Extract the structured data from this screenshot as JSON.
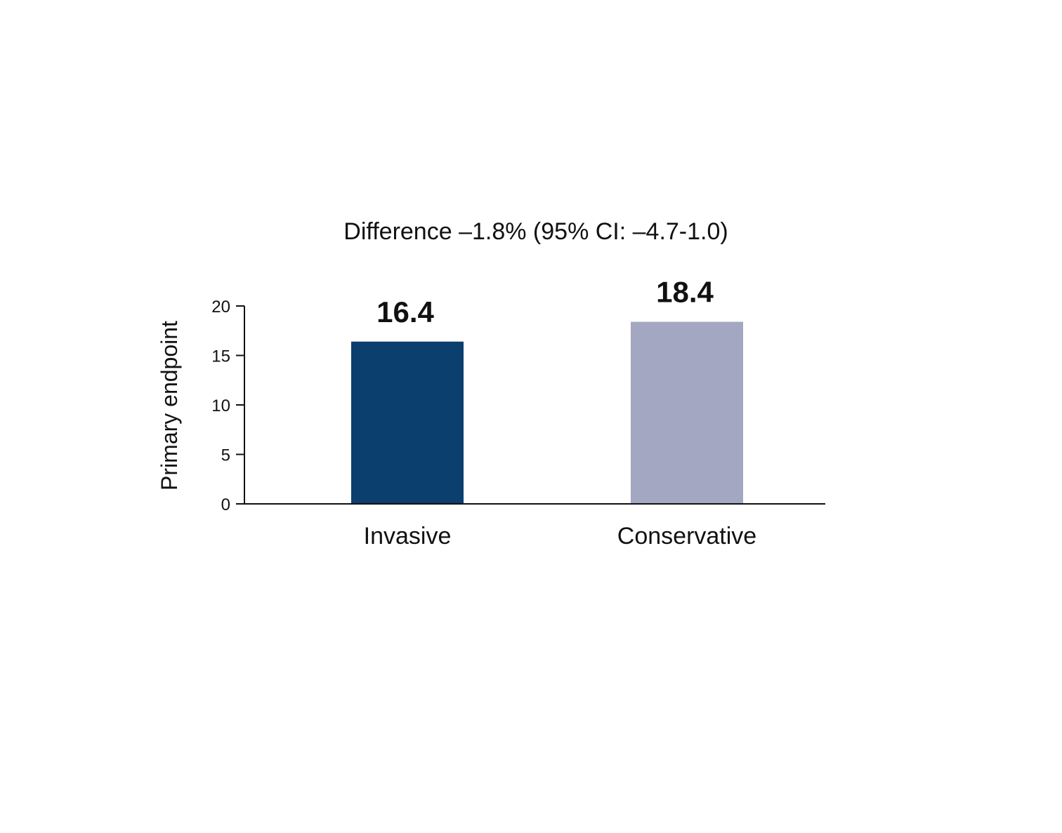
{
  "chart_data": {
    "type": "bar",
    "title": "Difference –1.8% (95% CI: –4.7-1.0)",
    "xlabel": "",
    "ylabel": "Primary endpoint",
    "categories": [
      "Invasive",
      "Conservative"
    ],
    "values": [
      16.4,
      18.4
    ],
    "value_labels": [
      "16.4",
      "18.4"
    ],
    "colors": [
      "#0a3f6e",
      "#a3a7c2"
    ],
    "ylim": [
      0,
      20
    ],
    "yticks": [
      0,
      5,
      10,
      15,
      20
    ],
    "ytick_labels": [
      "0",
      "5",
      "10",
      "15",
      "20"
    ],
    "grid": false,
    "legend": "none"
  }
}
